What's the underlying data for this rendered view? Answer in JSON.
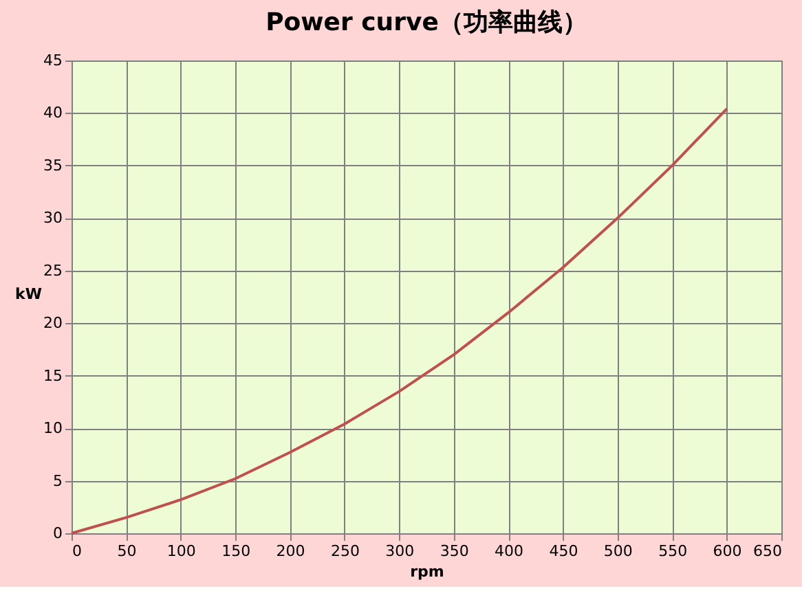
{
  "chart_data": {
    "type": "line",
    "title": "Power curve（功率曲线）",
    "xlabel": "rpm",
    "ylabel": "kW",
    "x": [
      0,
      50,
      100,
      150,
      200,
      250,
      300,
      350,
      400,
      450,
      500,
      550,
      600
    ],
    "series": [
      {
        "color": "#c0504d",
        "values": [
          0,
          1.5,
          3.2,
          5.2,
          7.7,
          10.4,
          13.5,
          17.0,
          21.0,
          25.3,
          30.0,
          35.0,
          40.4
        ]
      }
    ],
    "xlim": [
      0,
      650
    ],
    "xticks": [
      0,
      50,
      100,
      150,
      200,
      250,
      300,
      350,
      400,
      450,
      500,
      550,
      600,
      650
    ],
    "ylim": [
      0,
      45
    ],
    "yticks": [
      0,
      5,
      10,
      15,
      20,
      25,
      30,
      35,
      40,
      45
    ],
    "grid": true,
    "marker": "none",
    "line_style": "solid"
  }
}
